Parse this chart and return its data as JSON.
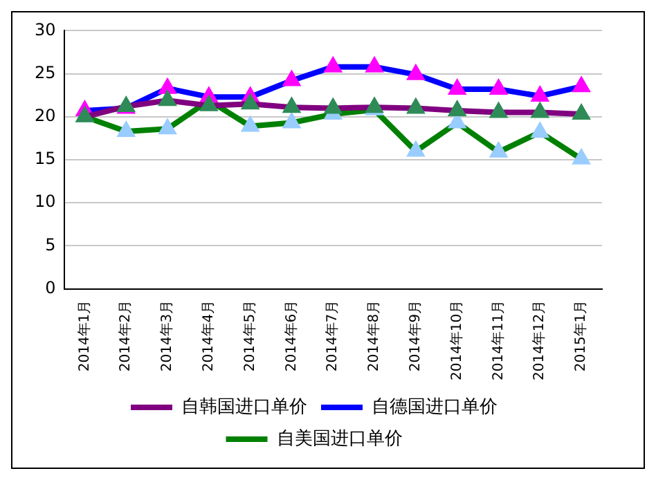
{
  "chart_data": {
    "type": "line",
    "categories": [
      "2014年1月",
      "2014年2月",
      "2014年3月",
      "2014年4月",
      "2014年5月",
      "2014年6月",
      "2014年7月",
      "2014年8月",
      "2014年9月",
      "2014年10月",
      "2014年11月",
      "2014年12月",
      "2015年1月"
    ],
    "series": [
      {
        "name": "自韩国进口单价",
        "color": "#800080",
        "colors": [
          "#2e8b57",
          "#2e8b57",
          "#2e8b57",
          "#2e8b57",
          "#2e8b57",
          "#2e8b57",
          "#2e8b57",
          "#2e8b57",
          "#2e8b57",
          "#2e8b57",
          "#2e8b57",
          "#2e8b57",
          "#2e8b57"
        ],
        "values": [
          20.0,
          21.2,
          21.9,
          21.3,
          21.5,
          21.1,
          21.0,
          21.1,
          21.0,
          20.7,
          20.5,
          20.5,
          20.3
        ]
      },
      {
        "name": "自德国进口单价",
        "color": "#0000ff",
        "colors": [
          "#ff00ff",
          "#ff00ff",
          "#ff00ff",
          "#ff00ff",
          "#ff00ff",
          "#ff00ff",
          "#ff00ff",
          "#ff00ff",
          "#ff00ff",
          "#ff00ff",
          "#ff00ff",
          "#ff00ff",
          "#ff00ff"
        ],
        "values": [
          20.7,
          21.0,
          23.3,
          22.3,
          22.3,
          24.2,
          25.8,
          25.8,
          24.9,
          23.2,
          23.2,
          22.4,
          23.5
        ]
      },
      {
        "name": "自美国进口单价",
        "color": "#008000",
        "colors": [
          "#99ccff",
          "#99ccff",
          "#99ccff",
          "#99ccff",
          "#99ccff",
          "#99ccff",
          "#99ccff",
          "#99ccff",
          "#99ccff",
          "#99ccff",
          "#99ccff",
          "#99ccff",
          "#99ccff"
        ],
        "values": [
          20.0,
          18.3,
          18.6,
          21.9,
          18.9,
          19.3,
          20.3,
          20.8,
          16.0,
          19.3,
          15.9,
          18.2,
          15.1
        ]
      }
    ],
    "ylim": [
      0,
      30
    ],
    "yticks": [
      0,
      5,
      10,
      15,
      20,
      25,
      30
    ],
    "grid": "y",
    "legend": "bottom",
    "marker": "triangle",
    "line_style": "solid"
  }
}
